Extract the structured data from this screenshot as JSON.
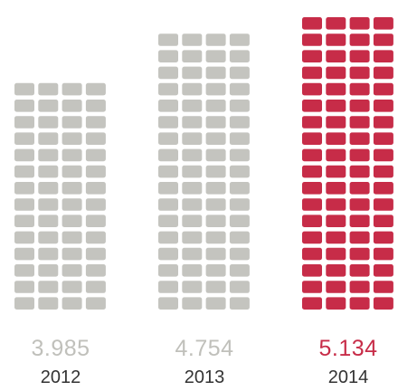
{
  "chart_data": {
    "type": "bar",
    "categories": [
      "2012",
      "2013",
      "2014"
    ],
    "values": [
      3.985,
      4.754,
      5.134
    ],
    "value_labels": [
      "3.985",
      "4.754",
      "5.134"
    ],
    "highlight_index": 2,
    "colors": {
      "default": "#c4c4bf",
      "highlight": "#c72c48",
      "default_label": "#c0c0bb",
      "highlight_label": "#c72c48",
      "year_label": "#333333"
    }
  }
}
